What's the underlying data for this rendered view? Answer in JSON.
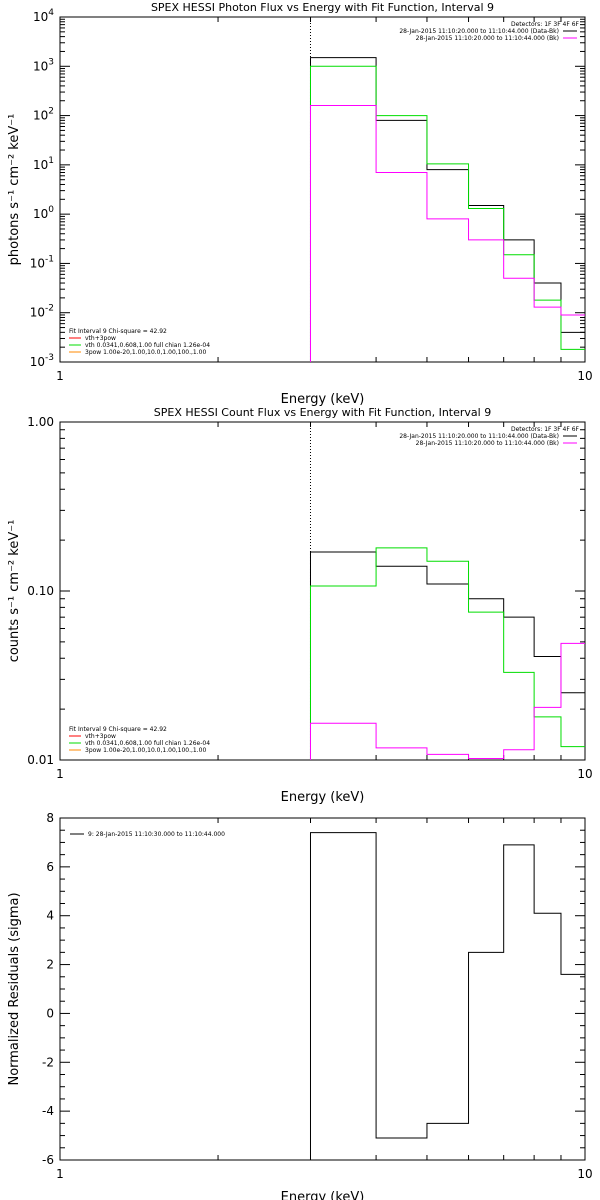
{
  "chart_data": [
    {
      "type": "line",
      "title": "SPEX HESSI Photon Flux vs Energy with Fit Function, Interval 9",
      "xlabel": "Energy (keV)",
      "ylabel": "photons s⁻¹ cm⁻² keV⁻¹",
      "xscale": "log",
      "yscale": "log",
      "xlim": [
        1,
        10
      ],
      "ylim": [
        0.001,
        10000
      ],
      "xticks": [
        {
          "v": 1,
          "label": "1"
        },
        {
          "v": 10,
          "label": "10"
        }
      ],
      "yticks": [
        {
          "v": 0.001,
          "b": "10",
          "e": "-3"
        },
        {
          "v": 0.01,
          "b": "10",
          "e": "-2"
        },
        {
          "v": 0.1,
          "b": "10",
          "e": "-1"
        },
        {
          "v": 1,
          "b": "10",
          "e": "0"
        },
        {
          "v": 10,
          "b": "10",
          "e": "1"
        },
        {
          "v": 100,
          "b": "10",
          "e": "2"
        },
        {
          "v": 1000,
          "b": "10",
          "e": "3"
        },
        {
          "v": 10000,
          "b": "10",
          "e": "4"
        }
      ],
      "vline": 3.0,
      "bin_edges": [
        3.0,
        4.0,
        5.0,
        6.0,
        7.0,
        8.0,
        9.0,
        10.0
      ],
      "series": [
        {
          "color": "#000000",
          "values": [
            1500,
            80,
            8.0,
            1.5,
            0.3,
            0.04,
            0.004
          ]
        },
        {
          "color": "#00dd00",
          "values": [
            1000,
            100,
            10.5,
            1.3,
            0.15,
            0.018,
            0.0018
          ]
        },
        {
          "color": "#ff00ff",
          "values": [
            160,
            7.0,
            0.8,
            0.3,
            0.05,
            0.013,
            0.009
          ]
        }
      ],
      "legend_top_right": {
        "detectors": "Detectors: 1F 3F 4F 6F",
        "rows": [
          {
            "text": "28-Jan-2015 11:10:20.000 to 11:10:44.000 (Data-Bk)",
            "color": "#000000"
          },
          {
            "text": "28-Jan-2015 11:10:20.000 to 11:10:44.000 (Bk)",
            "color": "#ff00ff"
          }
        ]
      },
      "legend_bottom_left": {
        "header": "Fit Interval 9   Chi-square = 42.92",
        "rows": [
          {
            "text": "vth+3pow",
            "color": "#ff0000"
          },
          {
            "text": "vth 0.0341,0.608,1.00  full chian 1.26e-04",
            "color": "#00dd00"
          },
          {
            "text": "3pow 1.00e-20,1.00,10.0,1.00,100.,1.00",
            "color": "#ff8800"
          }
        ]
      }
    },
    {
      "type": "line",
      "title": "SPEX HESSI Count Flux vs Energy with Fit Function, Interval 9",
      "xlabel": "Energy (keV)",
      "ylabel": "counts s⁻¹ cm⁻² keV⁻¹",
      "xscale": "log",
      "yscale": "log",
      "xlim": [
        1,
        10
      ],
      "ylim": [
        0.01,
        1.0
      ],
      "xticks": [
        {
          "v": 1,
          "label": "1"
        },
        {
          "v": 10,
          "label": "10"
        }
      ],
      "yticks": [
        {
          "v": 0.01,
          "label": "0.01"
        },
        {
          "v": 0.1,
          "label": "0.10"
        },
        {
          "v": 1.0,
          "label": "1.00"
        }
      ],
      "vline": 3.0,
      "bin_edges": [
        3.0,
        4.0,
        5.0,
        6.0,
        7.0,
        8.0,
        9.0,
        10.0
      ],
      "series": [
        {
          "color": "#000000",
          "values": [
            0.17,
            0.14,
            0.11,
            0.09,
            0.07,
            0.041,
            0.025
          ]
        },
        {
          "color": "#00dd00",
          "values": [
            0.107,
            0.18,
            0.15,
            0.075,
            0.033,
            0.018,
            0.012
          ]
        },
        {
          "color": "#ff00ff",
          "values": [
            0.0165,
            0.0118,
            0.0108,
            0.0102,
            0.0115,
            0.0205,
            0.049
          ]
        }
      ],
      "legend_top_right": {
        "detectors": "Detectors: 1F 3F 4F 6F",
        "rows": [
          {
            "text": "28-Jan-2015 11:10:20.000 to 11:10:44.000 (Data-Bk)",
            "color": "#000000"
          },
          {
            "text": "28-Jan-2015 11:10:20.000 to 11:10:44.000 (Bk)",
            "color": "#ff00ff"
          }
        ]
      },
      "legend_bottom_left": {
        "header": "Fit Interval 9   Chi-square = 42.92",
        "rows": [
          {
            "text": "vth+3pow",
            "color": "#ff0000"
          },
          {
            "text": "vth 0.0341,0.608,1.00  full chian 1.26e-04",
            "color": "#00dd00"
          },
          {
            "text": "3pow 1.00e-20,1.00,10.0,1.00,100.,1.00",
            "color": "#ff8800"
          }
        ]
      }
    },
    {
      "type": "line",
      "title": "",
      "xlabel": "Energy (keV)",
      "ylabel": "Normalized Residuals (sigma)",
      "xscale": "log",
      "yscale": "linear",
      "xlim": [
        1,
        10
      ],
      "ylim": [
        -6,
        8
      ],
      "xticks": [
        {
          "v": 1,
          "label": "1"
        },
        {
          "v": 10,
          "label": "10"
        }
      ],
      "yticks": [
        {
          "v": -6,
          "label": "-6"
        },
        {
          "v": -4,
          "label": "-4"
        },
        {
          "v": -2,
          "label": "-2"
        },
        {
          "v": 0,
          "label": "0"
        },
        {
          "v": 2,
          "label": "2"
        },
        {
          "v": 4,
          "label": "4"
        },
        {
          "v": 6,
          "label": "6"
        },
        {
          "v": 8,
          "label": "8"
        }
      ],
      "bin_edges": [
        3.0,
        4.0,
        5.0,
        6.0,
        7.0,
        8.0,
        9.0,
        10.0
      ],
      "series": [
        {
          "color": "#000000",
          "values": [
            7.4,
            -5.1,
            -4.5,
            2.5,
            6.9,
            4.1,
            1.6
          ]
        }
      ],
      "legend_top_left": {
        "rows": [
          {
            "text": "9: 28-Jan-2015 11:10:30.000 to 11:10:44.000",
            "color": "#000000"
          }
        ]
      }
    }
  ]
}
